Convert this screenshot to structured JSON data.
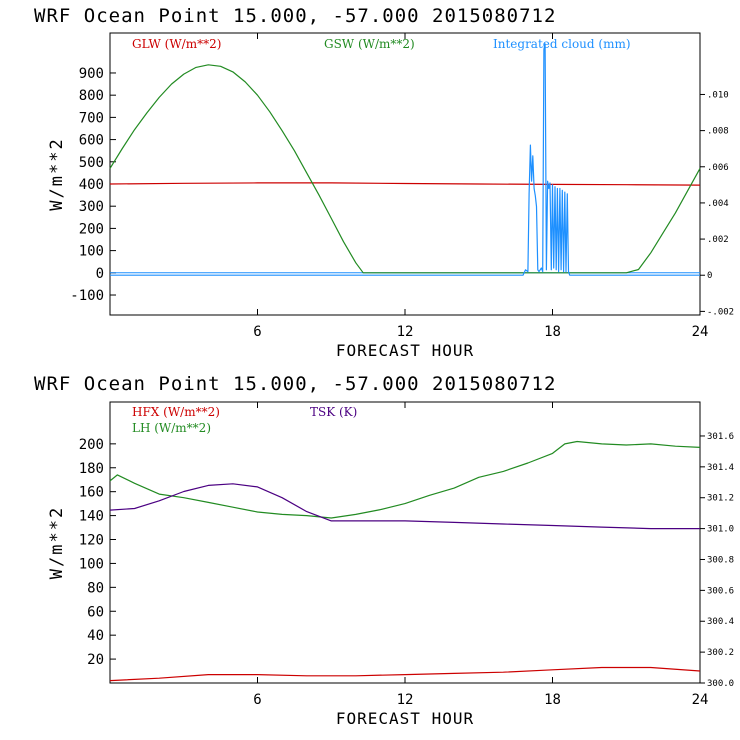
{
  "chart_data": [
    {
      "type": "line",
      "title": "WRF   Ocean Point   15.000, -57.000  2015080712",
      "xlabel": "FORECAST HOUR",
      "ylabel": "W/m**2",
      "xlim": [
        0,
        24
      ],
      "ylim": [
        -190,
        1080
      ],
      "y2lim": [
        -0.0022,
        0.0134
      ],
      "x_ticks": [
        "6",
        "12",
        "18",
        "24"
      ],
      "y_ticks": [
        "900",
        "800",
        "700",
        "600",
        "500",
        "400",
        "300",
        "200",
        "100",
        "0",
        "-100"
      ],
      "y2_ticks": [
        ".010",
        ".008",
        ".006",
        ".004",
        ".002",
        "0",
        "-.002"
      ],
      "y2_tick_values": [
        0.01,
        0.008,
        0.006,
        0.004,
        0.002,
        0,
        -0.002
      ],
      "legend": [
        {
          "label": "GLW (W/m**2)",
          "color": "#cc0000"
        },
        {
          "label": "GSW (W/m**2)",
          "color": "#228b22"
        },
        {
          "label": "Integrated cloud (mm)",
          "color": "#1e90ff"
        }
      ],
      "series": [
        {
          "name": "GLW",
          "axis": "left",
          "color": "#cc0000",
          "x": [
            0,
            3,
            6,
            9,
            12,
            15,
            18,
            21,
            24
          ],
          "values": [
            400,
            403,
            405,
            405,
            402,
            400,
            398,
            397,
            395
          ]
        },
        {
          "name": "GSW",
          "axis": "left",
          "color": "#228b22",
          "x": [
            0,
            0.5,
            1,
            1.5,
            2,
            2.5,
            3,
            3.5,
            4,
            4.5,
            5,
            5.5,
            6,
            6.5,
            7,
            7.5,
            8,
            8.5,
            9,
            9.5,
            10,
            10.3,
            11,
            13,
            15,
            17,
            19,
            21,
            21.5,
            22,
            22.5,
            23,
            23.5,
            24
          ],
          "values": [
            470,
            560,
            645,
            720,
            790,
            850,
            895,
            925,
            937,
            930,
            905,
            860,
            800,
            725,
            640,
            550,
            450,
            350,
            245,
            140,
            45,
            0,
            0,
            0,
            0,
            0,
            0,
            0,
            15,
            90,
            180,
            270,
            370,
            470
          ]
        },
        {
          "name": "Integrated cloud",
          "axis": "right",
          "color": "#1e90ff",
          "x": [
            0,
            16.8,
            16.9,
            17.0,
            17.05,
            17.1,
            17.15,
            17.2,
            17.25,
            17.3,
            17.35,
            17.4,
            17.45,
            17.5,
            17.55,
            17.6,
            17.65,
            17.7,
            17.75,
            17.8,
            17.85,
            17.9,
            17.95,
            18.0,
            18.05,
            18.1,
            18.15,
            18.2,
            18.25,
            18.3,
            18.35,
            18.4,
            18.45,
            18.5,
            18.55,
            18.6,
            18.65,
            18.7,
            24
          ],
          "values": [
            0,
            0,
            0.0003,
            0.0002,
            0.0045,
            0.0072,
            0.0052,
            0.0066,
            0.0048,
            0.0044,
            0.0038,
            0.0003,
            0.0002,
            0.0003,
            0.0004,
            0.0002,
            0.0125,
            0.0128,
            0.0003,
            0.0052,
            0.0048,
            0.0051,
            0.0003,
            0.005,
            0.0004,
            0.0049,
            0.0003,
            0.0048,
            0.0002,
            0.0048,
            0.0003,
            0.0047,
            0.0002,
            0.0046,
            0.0002,
            0.0045,
            0.0002,
            0,
            0
          ]
        }
      ]
    },
    {
      "type": "line",
      "title": "WRF   Ocean Point   15.000, -57.000  2015080712",
      "xlabel": "FORECAST HOUR",
      "ylabel": "W/m**2",
      "xlim": [
        0,
        24
      ],
      "ylim": [
        0,
        235
      ],
      "y2lim": [
        300.0,
        301.82
      ],
      "x_ticks": [
        "6",
        "12",
        "18",
        "24"
      ],
      "y_ticks": [
        "200",
        "180",
        "160",
        "140",
        "120",
        "100",
        "80",
        "60",
        "40",
        "20"
      ],
      "y2_ticks": [
        "301.6",
        "301.4",
        "301.2",
        "301.0",
        "300.8",
        "300.6",
        "300.4",
        "300.2",
        "300.0"
      ],
      "y2_tick_values": [
        301.6,
        301.4,
        301.2,
        301.0,
        300.8,
        300.6,
        300.4,
        300.2,
        300.0
      ],
      "legend": [
        {
          "label": "HFX (W/m**2)",
          "color": "#cc0000"
        },
        {
          "label": "LH  (W/m**2)",
          "color": "#228b22"
        },
        {
          "label": "TSK (K)",
          "color": "#4b0082"
        }
      ],
      "series": [
        {
          "name": "HFX",
          "axis": "left",
          "color": "#cc0000",
          "x": [
            0,
            2,
            4,
            6,
            8,
            10,
            12,
            14,
            16,
            18,
            20,
            22,
            24
          ],
          "values": [
            2,
            4,
            7,
            7,
            6,
            6,
            7,
            8,
            9,
            11,
            13,
            13,
            10
          ]
        },
        {
          "name": "LH",
          "axis": "left",
          "color": "#228b22",
          "x": [
            0,
            0.3,
            1,
            2,
            3,
            4,
            5,
            6,
            7,
            8,
            9,
            10,
            11,
            12,
            13,
            14,
            15,
            16,
            17,
            18,
            18.5,
            19,
            20,
            21,
            22,
            23,
            24
          ],
          "values": [
            169,
            174,
            167,
            158,
            155,
            151,
            147,
            143,
            141,
            140,
            138,
            141,
            145,
            150,
            157,
            163,
            172,
            177,
            184,
            192,
            200,
            202,
            200,
            199,
            200,
            198,
            197
          ]
        },
        {
          "name": "TSK",
          "axis": "right",
          "color": "#4b0082",
          "x": [
            0,
            1,
            2,
            3,
            4,
            5,
            6,
            7,
            8,
            9,
            10,
            12,
            14,
            16,
            18,
            20,
            22,
            24
          ],
          "values": [
            301.12,
            301.13,
            301.18,
            301.24,
            301.28,
            301.29,
            301.27,
            301.2,
            301.11,
            301.05,
            301.05,
            301.05,
            301.04,
            301.03,
            301.02,
            301.01,
            301.0,
            301.0
          ]
        }
      ]
    }
  ]
}
